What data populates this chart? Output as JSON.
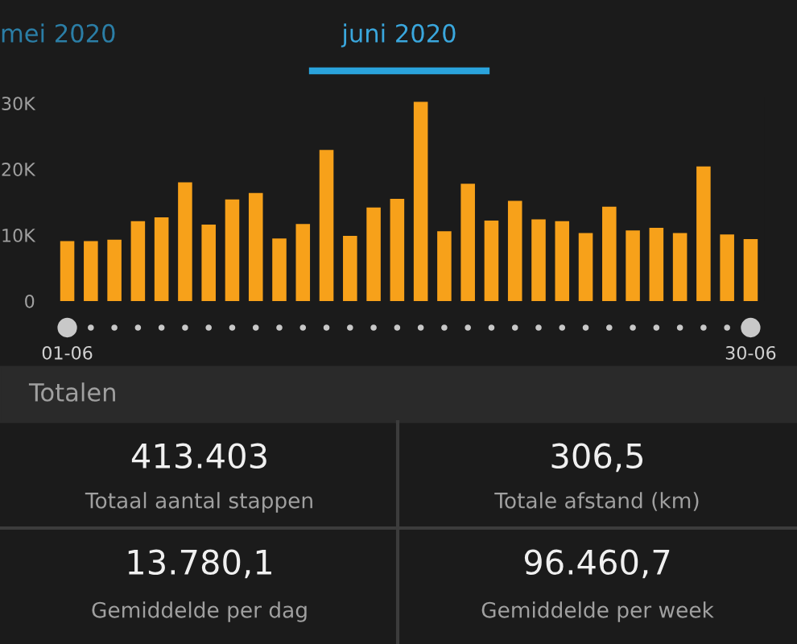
{
  "chart_data": {
    "type": "bar",
    "title": "juni 2020",
    "subtitle": "mei 2020",
    "categories": [
      "01-06",
      null,
      null,
      null,
      null,
      null,
      null,
      null,
      null,
      null,
      null,
      null,
      null,
      null,
      null,
      null,
      null,
      null,
      null,
      null,
      null,
      null,
      null,
      null,
      null,
      null,
      null,
      null,
      null,
      "30-06"
    ],
    "values": [
      9100,
      9100,
      9300,
      12100,
      12700,
      18000,
      11600,
      15400,
      16400,
      9500,
      11700,
      22900,
      9900,
      14200,
      15500,
      30200,
      10600,
      17800,
      12200,
      15200,
      12400,
      12100,
      10300,
      14300,
      10700,
      11100,
      10300,
      20400,
      10100,
      9400
    ],
    "color": "#f7a11a",
    "ylim": [
      0,
      31000
    ],
    "yticks": [
      {
        "value": 0,
        "label": "0"
      },
      {
        "value": 10000,
        "label": "10K"
      },
      {
        "value": 20000,
        "label": "20K"
      },
      {
        "value": 30000,
        "label": "30K"
      }
    ],
    "grid": false,
    "annotations": [
      "Totalen",
      "413.403",
      "Totaal aantal stappen",
      "306,5",
      "Totale afstand (km)",
      "13.780,1",
      "Gemiddelde per dag",
      "96.460,7",
      "Gemiddelde per week"
    ]
  }
}
